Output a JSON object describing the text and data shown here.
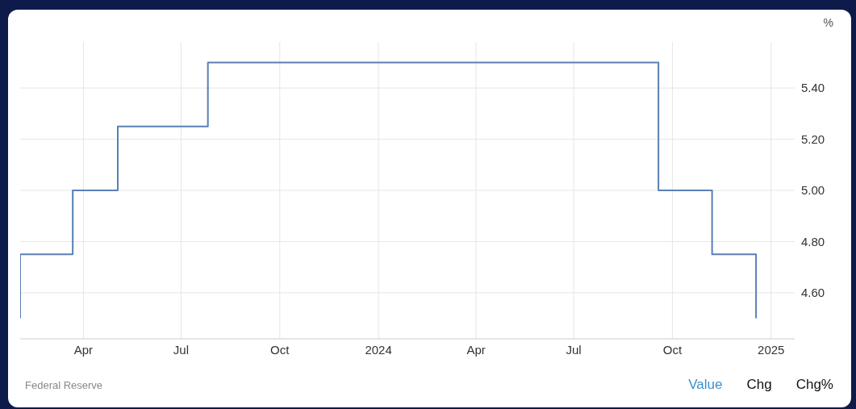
{
  "chart_data": {
    "type": "step",
    "ylabel": "%",
    "x": [
      "2023-02-01",
      "2023-02-01",
      "2023-03-22",
      "2023-05-03",
      "2023-07-26",
      "2024-09-18",
      "2024-11-07",
      "2024-12-18"
    ],
    "series": [
      {
        "color": "#5a7fb4",
        "values": [
          4.5,
          4.75,
          5.0,
          5.25,
          5.5,
          5.0,
          4.75,
          4.5
        ]
      }
    ],
    "xlim": [
      "2023-02-01",
      "2025-01-23"
    ],
    "xticks": [
      {
        "value": "2023-04-01",
        "label": "Apr"
      },
      {
        "value": "2023-07-01",
        "label": "Jul"
      },
      {
        "value": "2023-10-01",
        "label": "Oct"
      },
      {
        "value": "2024-01-01",
        "label": "2024"
      },
      {
        "value": "2024-04-01",
        "label": "Apr"
      },
      {
        "value": "2024-07-01",
        "label": "Jul"
      },
      {
        "value": "2024-10-01",
        "label": "Oct"
      },
      {
        "value": "2025-01-01",
        "label": "2025"
      }
    ],
    "ylim": [
      4.42,
      5.58
    ],
    "yticks": [
      {
        "value": 4.6,
        "label": "4.60"
      },
      {
        "value": 4.8,
        "label": "4.80"
      },
      {
        "value": 5.0,
        "label": "5.00"
      },
      {
        "value": 5.2,
        "label": "5.20"
      },
      {
        "value": 5.4,
        "label": "5.40"
      }
    ],
    "grid": true,
    "marker": "none",
    "line_style": "solid",
    "annotations": [
      "Federal Reserve",
      "Value",
      "Chg",
      "Chg%"
    ]
  }
}
